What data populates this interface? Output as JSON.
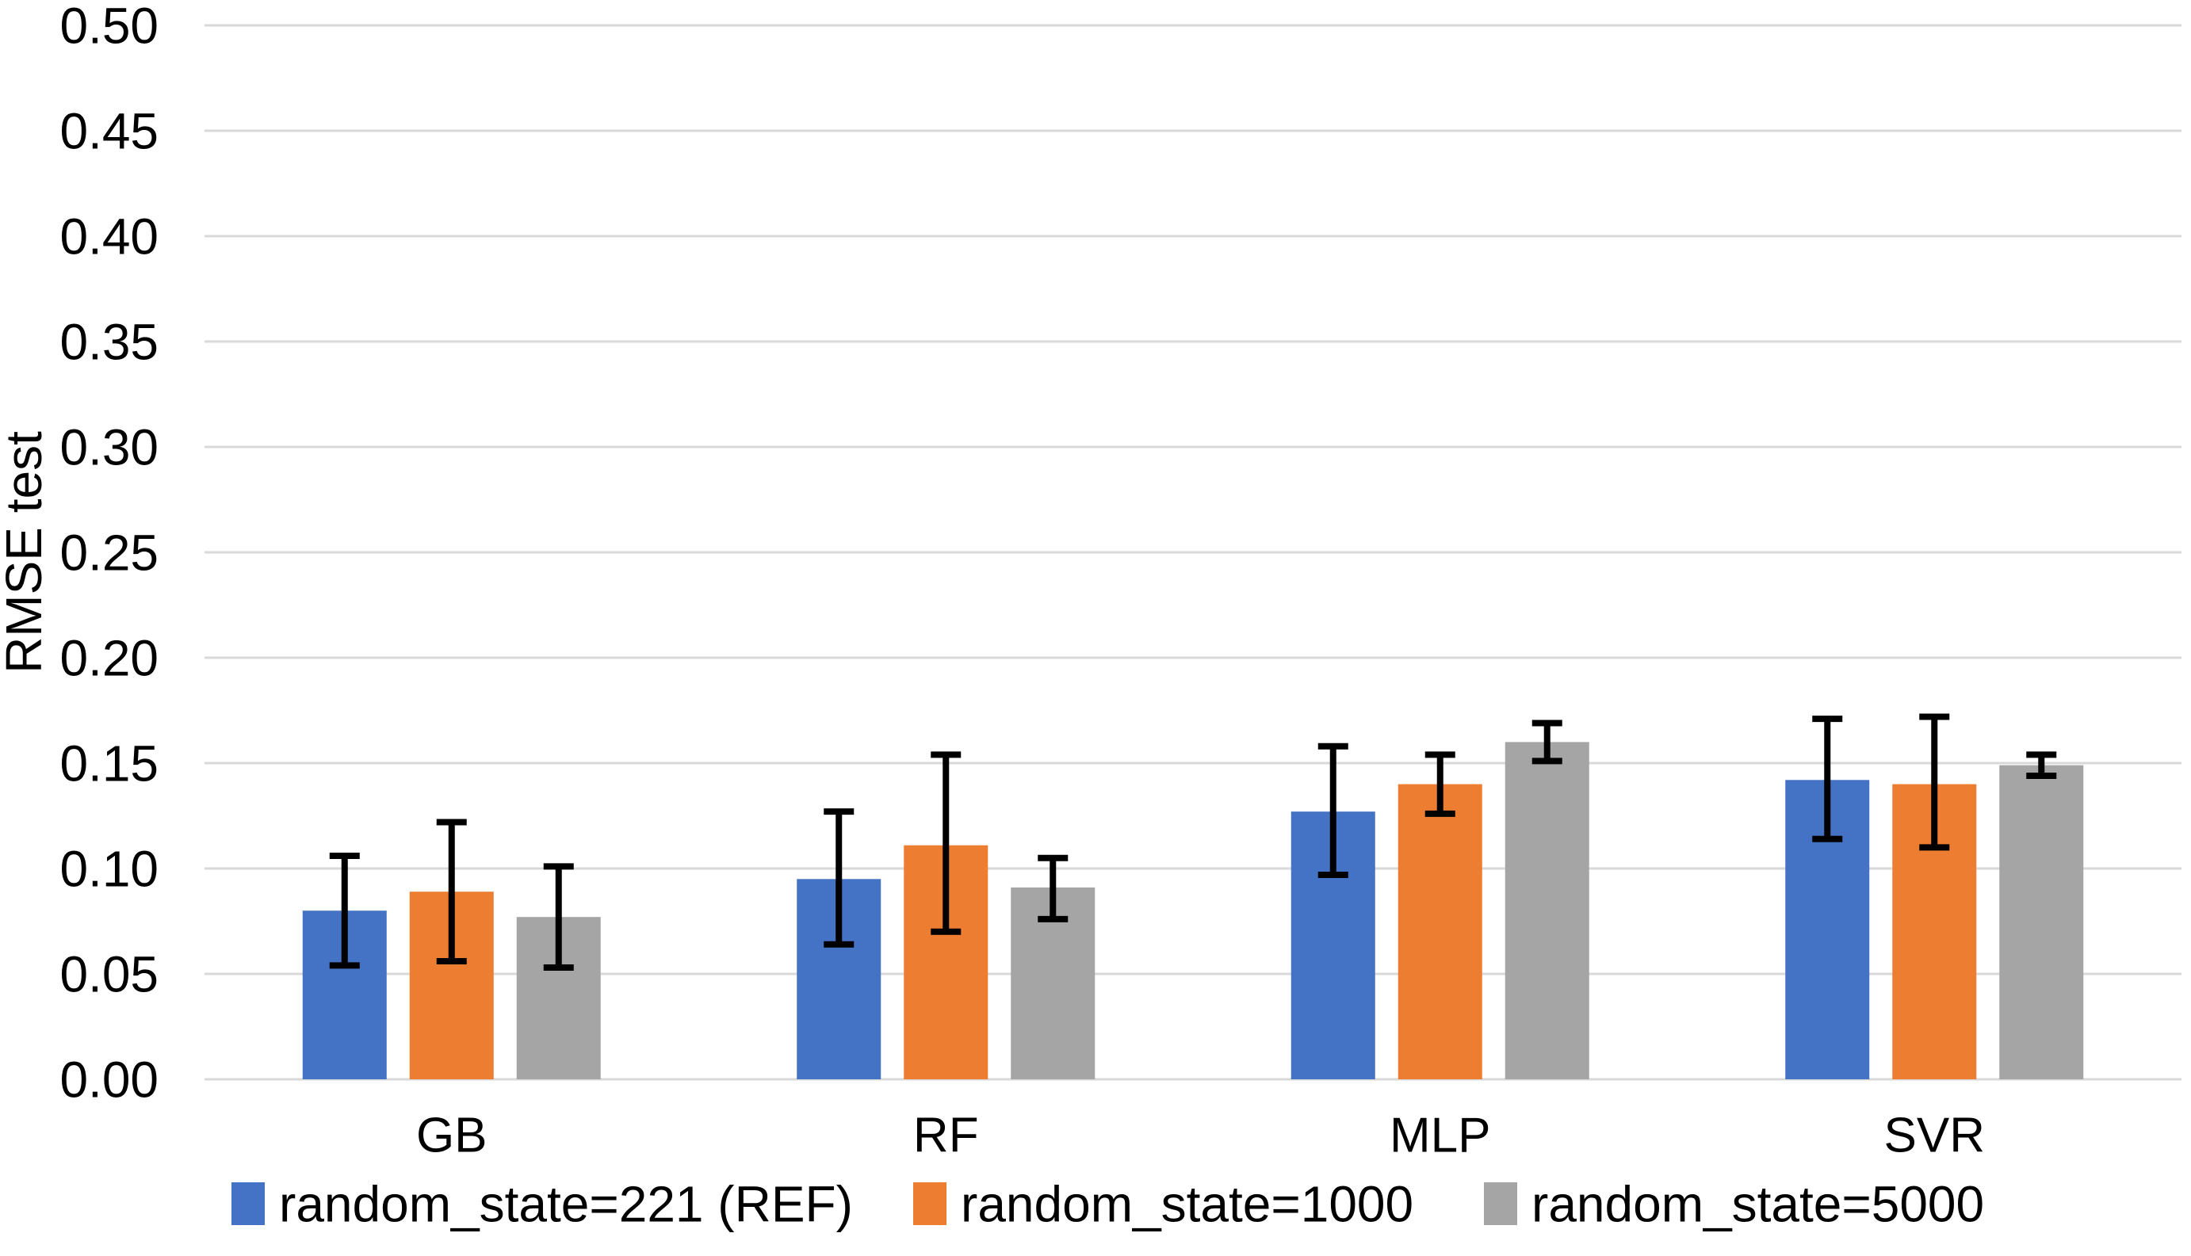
{
  "chart_data": {
    "type": "bar",
    "title": "",
    "ylabel": "RMSE test",
    "xlabel": "",
    "ylim": [
      0,
      0.5
    ],
    "ytick_step": 0.05,
    "ytick_labels": [
      "0.00",
      "0.05",
      "0.10",
      "0.15",
      "0.20",
      "0.25",
      "0.30",
      "0.35",
      "0.40",
      "0.45",
      "0.50"
    ],
    "categories": [
      "GB",
      "RF",
      "MLP",
      "SVR"
    ],
    "series": [
      {
        "name": "random_state=221 (REF)",
        "color": "#4472C4",
        "values": [
          0.08,
          0.095,
          0.127,
          0.142
        ],
        "err_low": [
          0.054,
          0.064,
          0.097,
          0.114
        ],
        "err_high": [
          0.106,
          0.127,
          0.158,
          0.171
        ]
      },
      {
        "name": "random_state=1000",
        "color": "#ED7D31",
        "values": [
          0.089,
          0.111,
          0.14,
          0.14
        ],
        "err_low": [
          0.056,
          0.07,
          0.126,
          0.11
        ],
        "err_high": [
          0.122,
          0.154,
          0.154,
          0.172
        ]
      },
      {
        "name": "random_state=5000",
        "color": "#A5A5A5",
        "values": [
          0.077,
          0.091,
          0.16,
          0.149
        ],
        "err_low": [
          0.053,
          0.076,
          0.151,
          0.144
        ],
        "err_high": [
          0.101,
          0.105,
          0.169,
          0.154
        ]
      }
    ],
    "grid": true,
    "gridline_color": "#D9D9D9",
    "error_bar_color": "#000000",
    "text_color": "#000000",
    "background_color": "#FFFFFF",
    "legend_position": "bottom"
  }
}
